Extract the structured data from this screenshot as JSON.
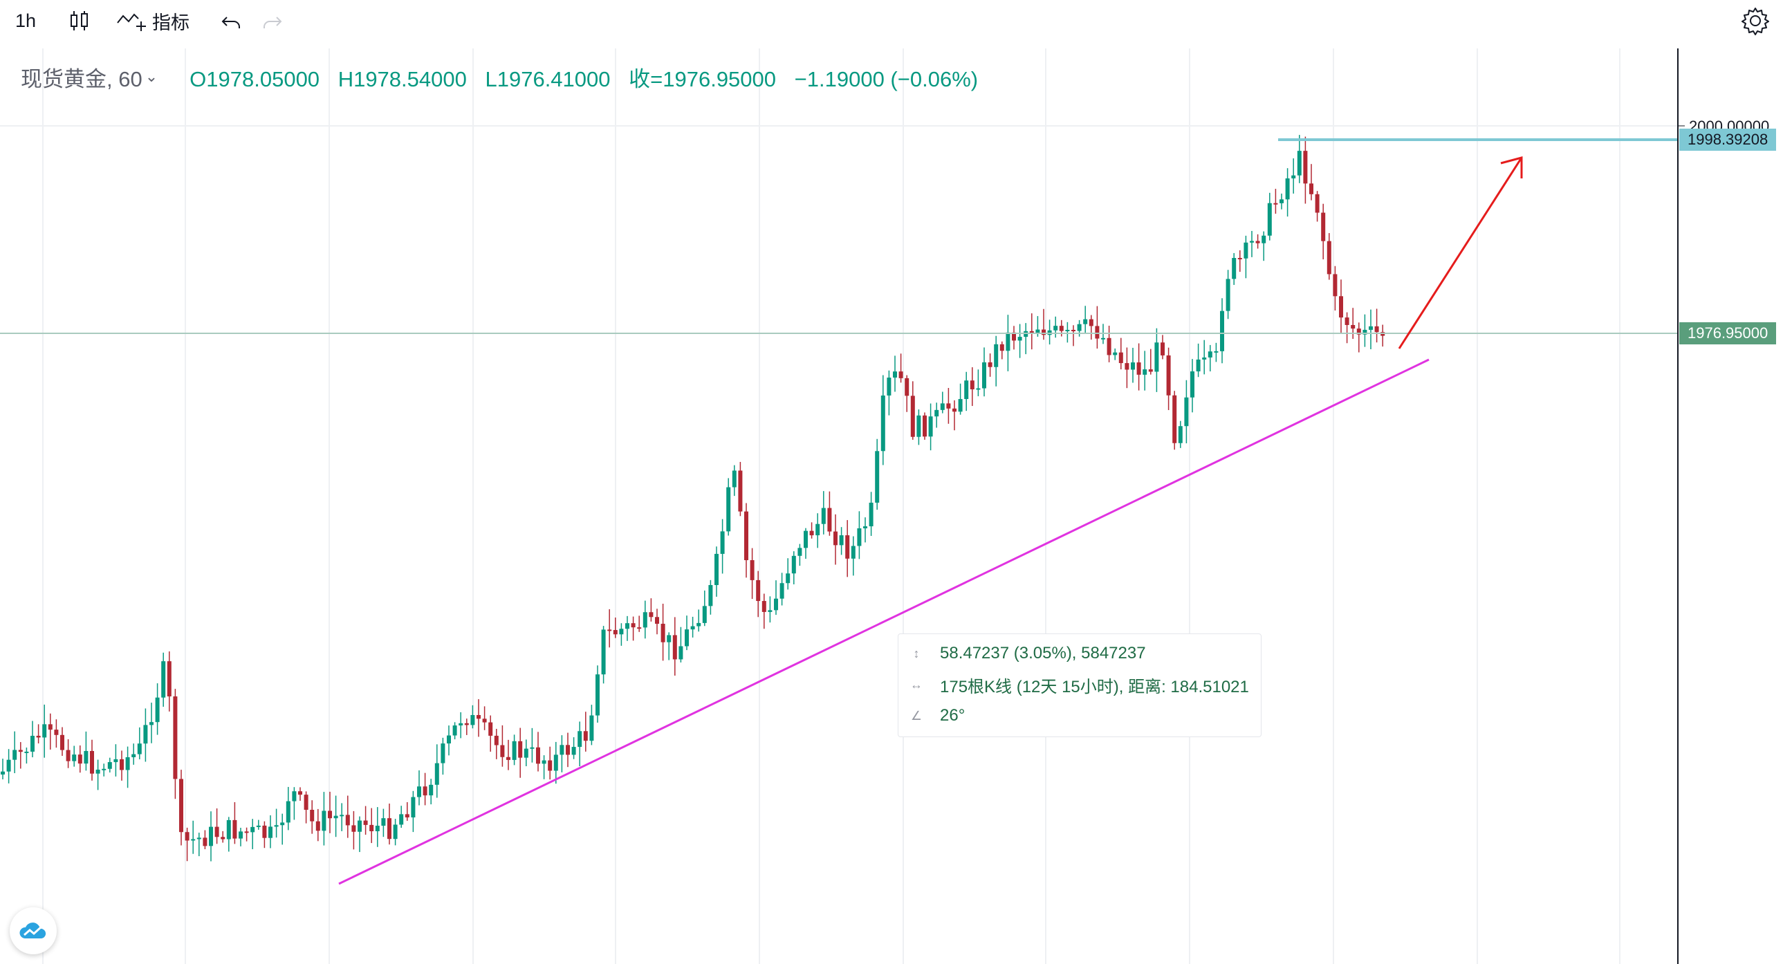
{
  "toolbar": {
    "interval": "1h",
    "indicators": "指标"
  },
  "legend": {
    "symbol": "现货黄金, 60",
    "open": "O1978.05000",
    "high": "H1978.54000",
    "low": "L1976.41000",
    "close": "收=1976.95000",
    "change": "−1.19000 (−0.06%)"
  },
  "price_axis": {
    "top_label": "2000.00000",
    "marker_resistance": "1998.39208",
    "marker_last": "1976.95000",
    "colors": {
      "resistance": "#7ec8d4",
      "last": "#5a9e7c",
      "trend": "#e033e0",
      "arrow": "#e51c1c"
    }
  },
  "measure_tooltip": {
    "range": "58.47237 (3.05%), 5847237",
    "bars": "175根K线 (12天 15小时), 距离: 184.51021",
    "angle": "26°"
  },
  "colors": {
    "up": "#089981",
    "down": "#b22833",
    "text": "#131722",
    "grid": "#eef0f3"
  }
}
